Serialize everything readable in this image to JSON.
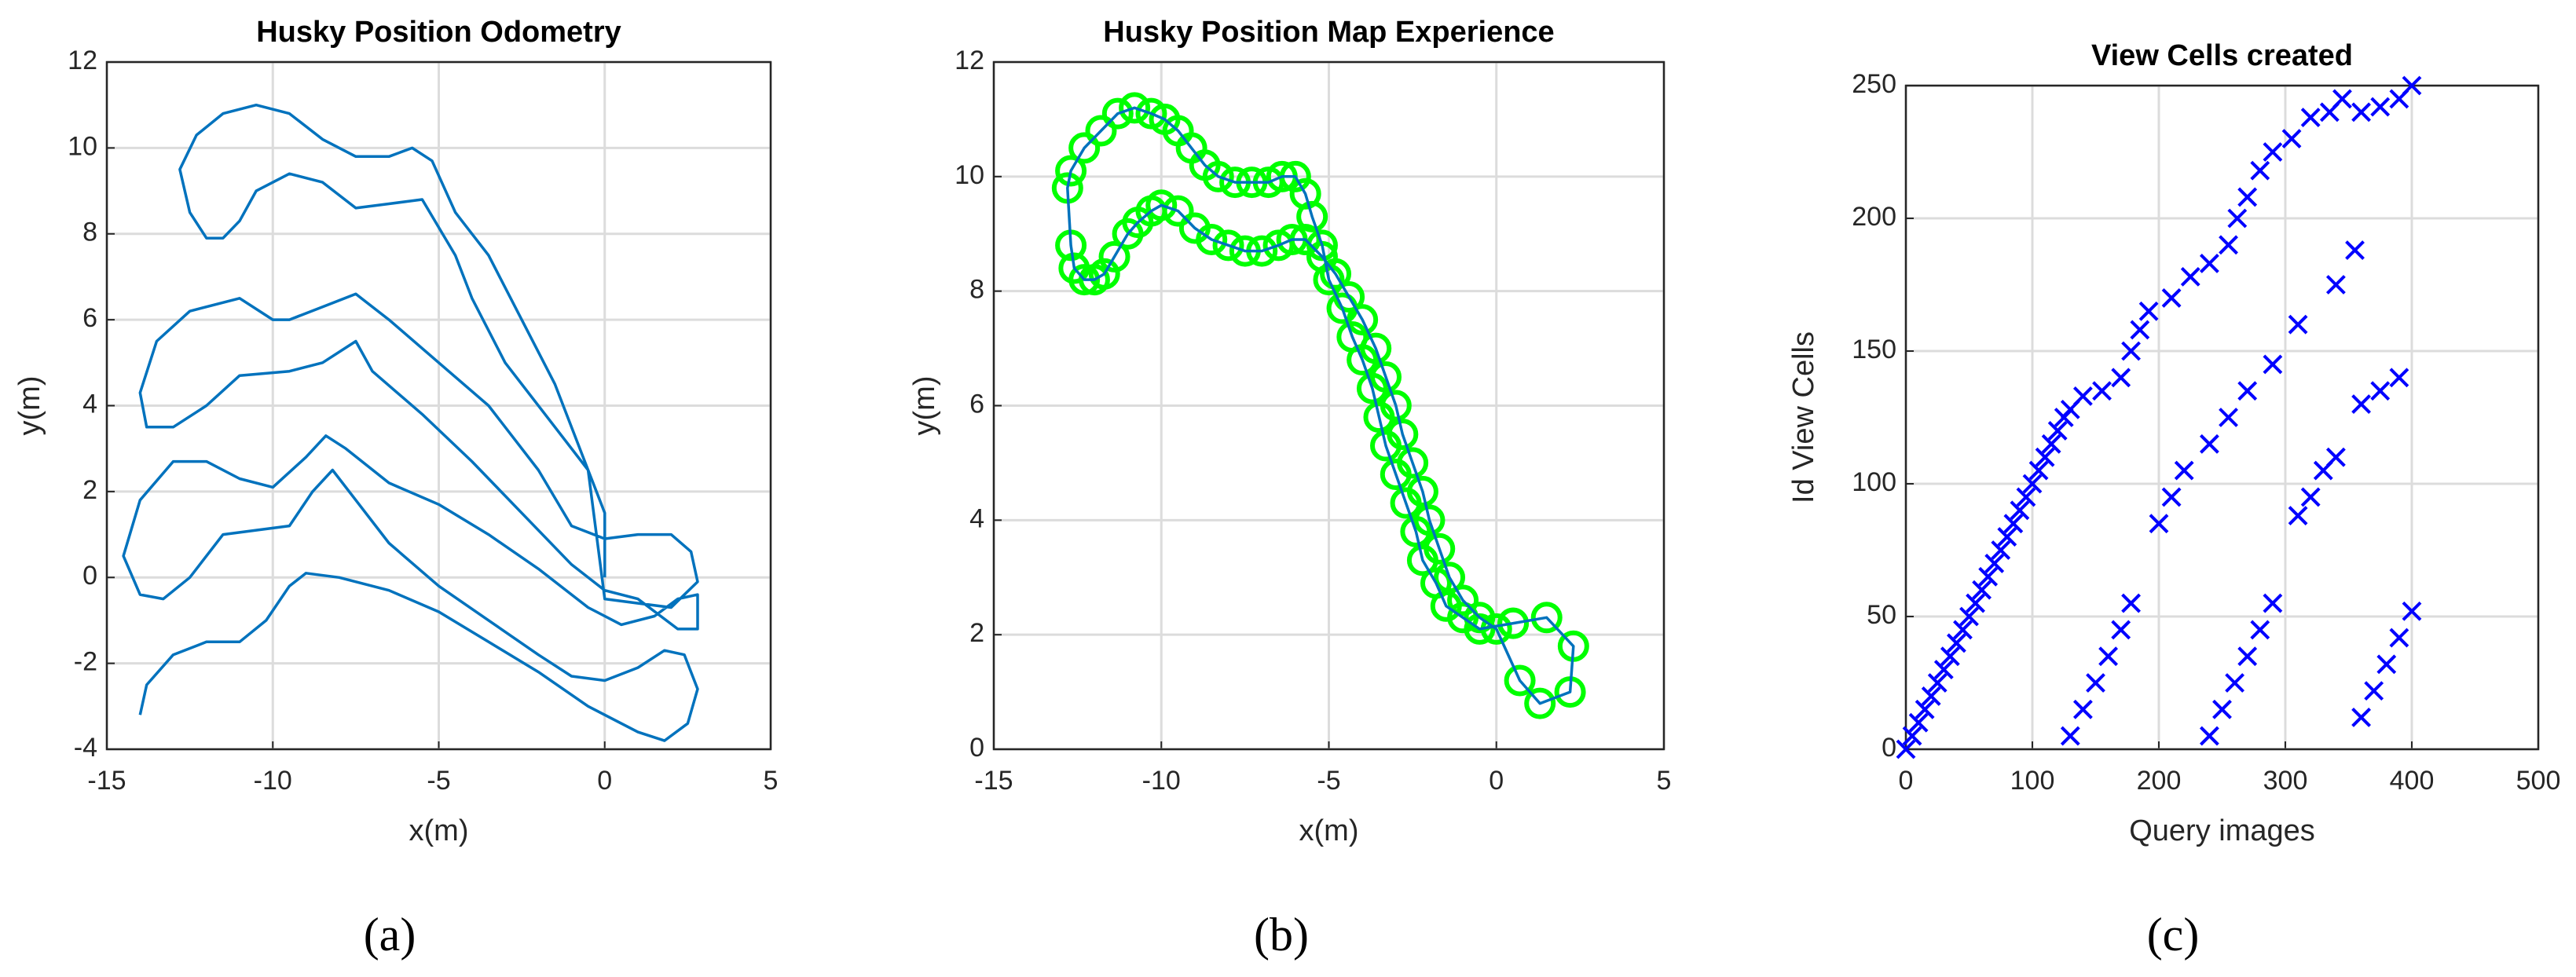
{
  "chart_data": [
    {
      "type": "line",
      "title": "Husky Position Odometry",
      "xlabel": "x(m)",
      "ylabel": "y(m)",
      "panel_label": "(a)",
      "xlim": [
        -15,
        5
      ],
      "ylim": [
        -4,
        12
      ],
      "xticks": [
        -15,
        -10,
        -5,
        0,
        5
      ],
      "yticks": [
        -4,
        -2,
        0,
        2,
        4,
        6,
        8,
        10,
        12
      ],
      "grid": true,
      "series": [
        {
          "color": "#0072bd",
          "x": [
            -14,
            -13.8,
            -13,
            -12,
            -11,
            -10.2,
            -9.5,
            -9,
            -8,
            -6.5,
            -5,
            -3.5,
            -2,
            -0.5,
            1,
            1.8,
            2.5,
            2.8,
            2.4,
            1.8,
            1,
            0,
            -1,
            -2,
            -3.5,
            -5,
            -6.5,
            -7.5,
            -8.2,
            -8.8,
            -9.5,
            -10.5,
            -11.5,
            -12.5,
            -13.3,
            -14,
            -14.5,
            -14,
            -13,
            -12,
            -11,
            -10,
            -9,
            -8.4,
            -7.8,
            -6.5,
            -5,
            -3.5,
            -2,
            -0.5,
            0.5,
            1.5,
            2.2,
            2.8,
            2.8,
            2.2,
            1,
            0,
            -1,
            -2.5,
            -4,
            -5.5,
            -7,
            -7.5,
            -8.5,
            -9.5,
            -11,
            -12,
            -13,
            -13.8,
            -14,
            -13.5,
            -12.5,
            -11,
            -10,
            -9.5,
            -8.5,
            -7.5,
            -6.5,
            -5,
            -3.5,
            -2,
            -1,
            0,
            1,
            2,
            2.6,
            2.8,
            2,
            1,
            0,
            -0.5,
            -1.5,
            -3,
            -4,
            -4.5,
            -5.5,
            -6.5,
            -7.5,
            -8.5,
            -9.5,
            -10.5,
            -11,
            -11.5,
            -12,
            -12.5,
            -12.8,
            -12.3,
            -11.5,
            -10.5,
            -9.5,
            -8.5,
            -7.5,
            -6.5,
            -5.8,
            -5.2,
            -4.5,
            -3.5,
            -2.5,
            -1.5,
            -0.5,
            0,
            0
          ],
          "y": [
            -3.2,
            -2.5,
            -1.8,
            -1.5,
            -1.5,
            -1,
            -0.2,
            0.1,
            0,
            -0.3,
            -0.8,
            -1.5,
            -2.2,
            -3,
            -3.6,
            -3.8,
            -3.4,
            -2.6,
            -1.8,
            -1.7,
            -2.1,
            -2.4,
            -2.3,
            -1.8,
            -1,
            -0.2,
            0.8,
            1.8,
            2.5,
            2,
            1.2,
            1.1,
            1,
            0,
            -0.5,
            -0.4,
            0.5,
            1.8,
            2.7,
            2.7,
            2.3,
            2.1,
            2.8,
            3.3,
            3,
            2.2,
            1.7,
            1,
            0.2,
            -0.7,
            -1.1,
            -0.9,
            -0.5,
            -0.4,
            -1.2,
            -1.2,
            -0.5,
            -0.3,
            0.3,
            1.5,
            2.7,
            3.8,
            4.8,
            5.5,
            5,
            4.8,
            4.7,
            4,
            3.5,
            3.5,
            4.3,
            5.5,
            6.2,
            6.5,
            6,
            6,
            6.3,
            6.6,
            6,
            5,
            4,
            2.5,
            1.2,
            0.9,
            1,
            1,
            0.6,
            -0.1,
            -0.7,
            -0.6,
            -0.5,
            2.5,
            3.5,
            5,
            6.5,
            7.5,
            8.8,
            8.7,
            8.6,
            9.2,
            9.4,
            9,
            8.3,
            7.9,
            7.9,
            8.5,
            9.5,
            10.3,
            10.8,
            11,
            10.8,
            10.2,
            9.8,
            9.8,
            10,
            9.7,
            8.5,
            7.5,
            6,
            4.5,
            2.5,
            1.5,
            0
          ]
        }
      ]
    },
    {
      "type": "line",
      "title": "Husky Position Map Experience",
      "xlabel": "x(m)",
      "ylabel": "y(m)",
      "panel_label": "(b)",
      "xlim": [
        -15,
        5
      ],
      "ylim": [
        0,
        12
      ],
      "xticks": [
        -15,
        -10,
        -5,
        0,
        5
      ],
      "yticks": [
        0,
        2,
        4,
        6,
        8,
        10,
        12
      ],
      "grid": true,
      "series": [
        {
          "color": "#0072bd",
          "marker": "o",
          "marker_color": "#00ff00",
          "x": [
            0.5,
            1.5,
            2.3,
            2.2,
            1.3,
            0.7,
            0,
            -0.5,
            -1,
            -1.4,
            -1.7,
            -2,
            -2.2,
            -2.5,
            -2.8,
            -3,
            -3.3,
            -3.6,
            -4,
            -4.4,
            -4.8,
            -5.2,
            -5.7,
            -6.1,
            -6.5,
            -7,
            -7.5,
            -8,
            -8.5,
            -9,
            -9.5,
            -10,
            -10.3,
            -10.7,
            -11,
            -11.4,
            -11.7,
            -12,
            -12.3,
            -12.6,
            -12.7,
            -12.8,
            -12.7,
            -12.3,
            -11.8,
            -11.3,
            -10.8,
            -10.3,
            -9.9,
            -9.5,
            -9.1,
            -8.7,
            -8.3,
            -7.8,
            -7.3,
            -6.8,
            -6.4,
            -6,
            -5.7,
            -5.5,
            -5.2,
            -5,
            -4.6,
            -4.3,
            -4,
            -3.7,
            -3.5,
            -3.3,
            -3,
            -2.7,
            -2.4,
            -2.2,
            -1.8,
            -1.5,
            -1,
            -0.5,
            0.5
          ],
          "y": [
            2.2,
            2.3,
            1.8,
            1,
            0.8,
            1.2,
            2.1,
            2.3,
            2.6,
            3,
            3.5,
            4,
            4.5,
            5,
            5.5,
            6,
            6.5,
            7,
            7.5,
            7.9,
            8.3,
            8.6,
            8.9,
            8.9,
            8.8,
            8.7,
            8.7,
            8.8,
            8.9,
            9.1,
            9.4,
            9.5,
            9.4,
            9.2,
            9,
            8.6,
            8.3,
            8.2,
            8.2,
            8.4,
            8.8,
            9.8,
            10.1,
            10.5,
            10.8,
            11.1,
            11.2,
            11.1,
            11,
            10.8,
            10.5,
            10.2,
            10,
            9.9,
            9.9,
            9.9,
            10,
            10,
            9.7,
            9.3,
            8.8,
            8.2,
            7.7,
            7.2,
            6.8,
            6.3,
            5.8,
            5.3,
            4.8,
            4.3,
            3.8,
            3.3,
            2.9,
            2.5,
            2.3,
            2.1,
            2.2
          ]
        }
      ]
    },
    {
      "type": "scatter",
      "title": "View Cells created",
      "xlabel": "Query images",
      "ylabel": "Id View Cells",
      "panel_label": "(c)",
      "xlim": [
        0,
        500
      ],
      "ylim": [
        0,
        250
      ],
      "xticks": [
        0,
        100,
        200,
        300,
        400,
        500
      ],
      "yticks": [
        0,
        50,
        100,
        150,
        200,
        250
      ],
      "grid": true,
      "series": [
        {
          "color": "#0000ff",
          "marker": "x",
          "x": [
            0,
            5,
            10,
            15,
            20,
            25,
            30,
            35,
            40,
            45,
            50,
            55,
            60,
            65,
            70,
            75,
            80,
            85,
            90,
            95,
            100,
            105,
            110,
            115,
            120,
            125,
            130,
            140,
            155,
            170,
            178,
            185,
            192,
            210,
            225,
            240,
            255,
            262,
            270,
            280,
            290,
            305,
            320,
            335,
            345,
            360,
            375,
            390,
            400,
            130,
            140,
            150,
            160,
            170,
            178,
            200,
            210,
            220,
            240,
            255,
            270,
            290,
            310,
            340,
            355,
            240,
            250,
            260,
            270,
            280,
            290,
            310,
            320,
            330,
            340,
            360,
            375,
            390,
            360,
            370,
            380,
            390,
            400
          ],
          "y": [
            0,
            5,
            10,
            15,
            20,
            25,
            30,
            35,
            40,
            45,
            50,
            55,
            60,
            65,
            70,
            75,
            80,
            85,
            90,
            95,
            100,
            105,
            110,
            115,
            120,
            125,
            128,
            133,
            135,
            140,
            150,
            158,
            165,
            170,
            178,
            183,
            190,
            200,
            208,
            218,
            225,
            230,
            238,
            240,
            245,
            240,
            242,
            245,
            250,
            5,
            15,
            25,
            35,
            45,
            55,
            85,
            95,
            105,
            115,
            125,
            135,
            145,
            160,
            175,
            188,
            5,
            15,
            25,
            35,
            45,
            55,
            88,
            95,
            105,
            110,
            130,
            135,
            140,
            12,
            22,
            32,
            42,
            52
          ]
        }
      ]
    }
  ]
}
